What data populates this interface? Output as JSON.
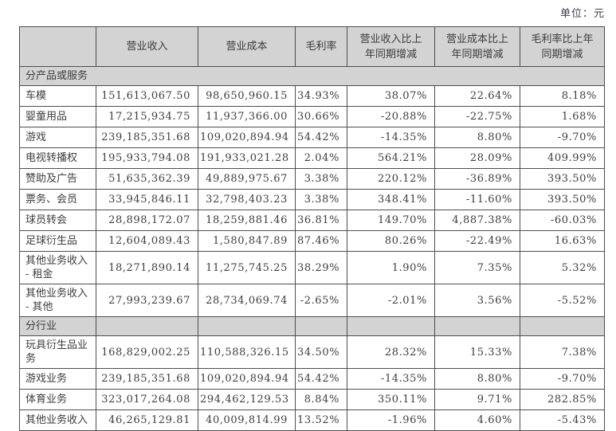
{
  "meta": {
    "unit_label": "单位：元"
  },
  "table": {
    "columns": [
      {
        "key": "category",
        "label": ""
      },
      {
        "key": "revenue",
        "label": "营业收入"
      },
      {
        "key": "cost",
        "label": "营业成本"
      },
      {
        "key": "gross_margin",
        "label": "毛利率"
      },
      {
        "key": "revenue_yoy",
        "label": "营业收入比上年同期增减"
      },
      {
        "key": "cost_yoy",
        "label": "营业成本比上年同期增减"
      },
      {
        "key": "gross_margin_yoy",
        "label": "毛利率比上年同期增减"
      }
    ],
    "sections": [
      {
        "title": "分产品或服务",
        "title_spans_all_columns": true,
        "rows": [
          {
            "category": "车模",
            "revenue": "151,613,067.50",
            "cost": "98,650,960.15",
            "gross_margin": "34.93%",
            "revenue_yoy": "38.07%",
            "cost_yoy": "22.64%",
            "gross_margin_yoy": "8.18%"
          },
          {
            "category": "婴童用品",
            "revenue": "17,215,934.75",
            "cost": "11,937,366.00",
            "gross_margin": "30.66%",
            "revenue_yoy": "-20.88%",
            "cost_yoy": "-22.75%",
            "gross_margin_yoy": "1.68%"
          },
          {
            "category": "游戏",
            "revenue": "239,185,351.68",
            "cost": "109,020,894.94",
            "gross_margin": "54.42%",
            "revenue_yoy": "-14.35%",
            "cost_yoy": "8.80%",
            "gross_margin_yoy": "-9.70%"
          },
          {
            "category": "电视转播权",
            "revenue": "195,933,794.08",
            "cost": "191,933,021.28",
            "gross_margin": "2.04%",
            "revenue_yoy": "564.21%",
            "cost_yoy": "28.09%",
            "gross_margin_yoy": "409.99%"
          },
          {
            "category": "赞助及广告",
            "revenue": "51,635,362.39",
            "cost": "49,889,975.67",
            "gross_margin": "3.38%",
            "revenue_yoy": "220.12%",
            "cost_yoy": "-36.89%",
            "gross_margin_yoy": "393.50%"
          },
          {
            "category": "票务、会员",
            "revenue": "33,945,846.11",
            "cost": "32,798,403.23",
            "gross_margin": "3.38%",
            "revenue_yoy": "348.41%",
            "cost_yoy": "-11.60%",
            "gross_margin_yoy": "393.50%"
          },
          {
            "category": "球员转会",
            "revenue": "28,898,172.07",
            "cost": "18,259,881.46",
            "gross_margin": "36.81%",
            "revenue_yoy": "149.70%",
            "cost_yoy": "4,887.38%",
            "gross_margin_yoy": "-60.03%"
          },
          {
            "category": "足球衍生品",
            "revenue": "12,604,089.43",
            "cost": "1,580,847.89",
            "gross_margin": "87.46%",
            "revenue_yoy": "80.26%",
            "cost_yoy": "-22.49%",
            "gross_margin_yoy": "16.63%"
          },
          {
            "category": "其他业务收入 - 租金",
            "revenue": "18,271,890.14",
            "cost": "11,275,745.25",
            "gross_margin": "38.29%",
            "revenue_yoy": "1.90%",
            "cost_yoy": "7.35%",
            "gross_margin_yoy": "5.32%"
          },
          {
            "category": "其他业务收入 - 其他",
            "revenue": "27,993,239.67",
            "cost": "28,734,069.74",
            "gross_margin": "-2.65%",
            "revenue_yoy": "-2.01%",
            "cost_yoy": "3.56%",
            "gross_margin_yoy": "-5.52%"
          }
        ]
      },
      {
        "title": "分行业",
        "title_spans_all_columns": false,
        "rows": [
          {
            "category": "玩具衍生品业务",
            "revenue": "168,829,002.25",
            "cost": "110,588,326.15",
            "gross_margin": "34.50%",
            "revenue_yoy": "28.32%",
            "cost_yoy": "15.33%",
            "gross_margin_yoy": "7.38%"
          },
          {
            "category": "游戏业务",
            "revenue": "239,185,351.68",
            "cost": "109,020,894.94",
            "gross_margin": "54.42%",
            "revenue_yoy": "-14.35%",
            "cost_yoy": "8.80%",
            "gross_margin_yoy": "-9.70%"
          },
          {
            "category": "体育业务",
            "revenue": "323,017,264.08",
            "cost": "294,462,129.53",
            "gross_margin": "8.84%",
            "revenue_yoy": "350.11%",
            "cost_yoy": "9.71%",
            "gross_margin_yoy": "282.85%"
          },
          {
            "category": "其他业务收入",
            "revenue": "46,265,129.81",
            "cost": "40,009,814.99",
            "gross_margin": "13.52%",
            "revenue_yoy": "-1.96%",
            "cost_yoy": "4.60%",
            "gross_margin_yoy": "-5.43%"
          }
        ]
      }
    ]
  }
}
